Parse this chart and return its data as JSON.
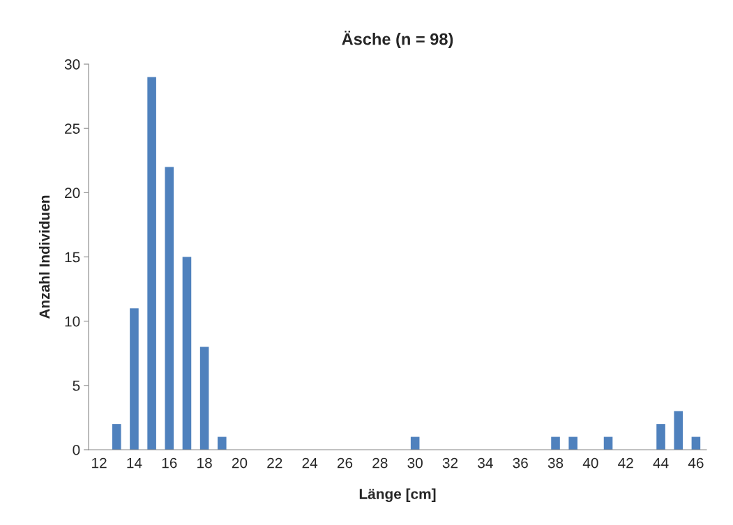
{
  "chart_data": {
    "type": "bar",
    "title": "Äsche (n = 98)",
    "xlabel": "Länge [cm]",
    "ylabel": "Anzahl Individuen",
    "categories": [
      "12",
      null,
      "14",
      null,
      "16",
      null,
      "18",
      null,
      "20",
      null,
      "22",
      null,
      "24",
      null,
      "26",
      null,
      "28",
      null,
      "30",
      null,
      "32",
      null,
      "34",
      null,
      "36",
      null,
      "38",
      null,
      "40",
      null,
      "42",
      null,
      "44",
      null,
      "46"
    ],
    "values": [
      0,
      2,
      11,
      29,
      22,
      15,
      8,
      1,
      0,
      0,
      0,
      0,
      0,
      0,
      0,
      0,
      0,
      0,
      1,
      0,
      0,
      0,
      0,
      0,
      0,
      0,
      1,
      1,
      0,
      1,
      0,
      0,
      2,
      3,
      1
    ],
    "color": "#4f81bd",
    "ylim": [
      0,
      30
    ],
    "yticks": [
      0,
      5,
      10,
      15,
      20,
      25,
      30
    ],
    "grid": false
  }
}
